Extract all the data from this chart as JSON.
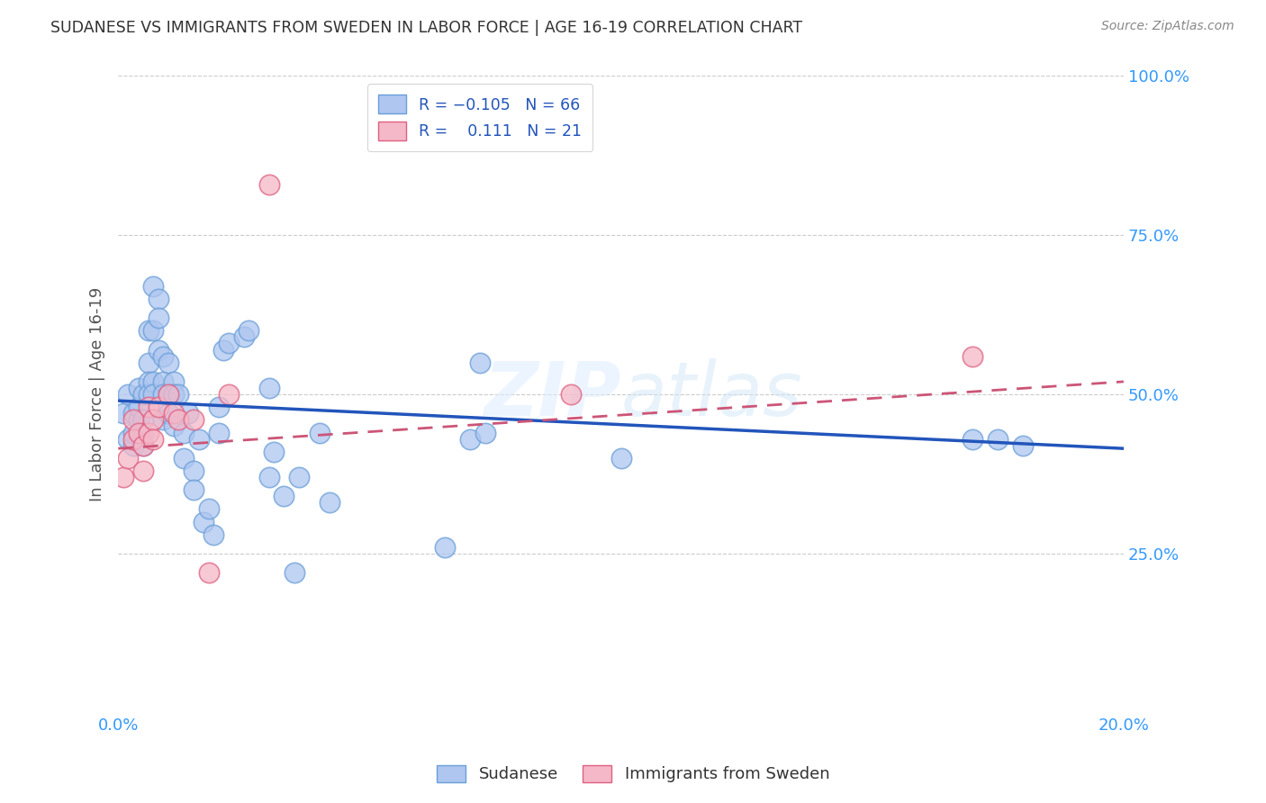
{
  "title": "SUDANESE VS IMMIGRANTS FROM SWEDEN IN LABOR FORCE | AGE 16-19 CORRELATION CHART",
  "source": "Source: ZipAtlas.com",
  "ylabel": "In Labor Force | Age 16-19",
  "xlim": [
    0.0,
    0.2
  ],
  "ylim": [
    0.0,
    1.0
  ],
  "xtick_positions": [
    0.0,
    0.04,
    0.08,
    0.12,
    0.16,
    0.2
  ],
  "xtick_labels": [
    "0.0%",
    "",
    "",
    "",
    "",
    "20.0%"
  ],
  "ytick_positions": [
    0.0,
    0.25,
    0.5,
    0.75,
    1.0
  ],
  "ytick_labels_right": [
    "",
    "25.0%",
    "50.0%",
    "75.0%",
    "100.0%"
  ],
  "watermark": "ZIPatlas",
  "sudanese_color_face": "#aec6f0",
  "sudanese_color_edge": "#6a9fd8",
  "sweden_color_face": "#f4b8c8",
  "sweden_color_edge": "#e06080",
  "trend_blue_color": "#2255bb",
  "trend_pink_color": "#cc5577",
  "sudanese_x": [
    0.001,
    0.002,
    0.002,
    0.003,
    0.003,
    0.003,
    0.004,
    0.004,
    0.004,
    0.005,
    0.005,
    0.005,
    0.005,
    0.006,
    0.006,
    0.006,
    0.006,
    0.007,
    0.007,
    0.007,
    0.007,
    0.008,
    0.008,
    0.008,
    0.009,
    0.009,
    0.009,
    0.009,
    0.01,
    0.01,
    0.01,
    0.011,
    0.011,
    0.011,
    0.012,
    0.013,
    0.013,
    0.014,
    0.015,
    0.015,
    0.016,
    0.017,
    0.018,
    0.019,
    0.02,
    0.02,
    0.021,
    0.022,
    0.025,
    0.026,
    0.03,
    0.03,
    0.031,
    0.033,
    0.035,
    0.036,
    0.04,
    0.042,
    0.065,
    0.07,
    0.072,
    0.073,
    0.1,
    0.17,
    0.175,
    0.18
  ],
  "sudanese_y": [
    0.47,
    0.43,
    0.5,
    0.42,
    0.47,
    0.44,
    0.46,
    0.48,
    0.51,
    0.5,
    0.46,
    0.44,
    0.42,
    0.6,
    0.55,
    0.52,
    0.5,
    0.67,
    0.6,
    0.52,
    0.5,
    0.65,
    0.62,
    0.57,
    0.56,
    0.52,
    0.5,
    0.46,
    0.55,
    0.5,
    0.47,
    0.52,
    0.5,
    0.45,
    0.5,
    0.44,
    0.4,
    0.47,
    0.38,
    0.35,
    0.43,
    0.3,
    0.32,
    0.28,
    0.48,
    0.44,
    0.57,
    0.58,
    0.59,
    0.6,
    0.51,
    0.37,
    0.41,
    0.34,
    0.22,
    0.37,
    0.44,
    0.33,
    0.26,
    0.43,
    0.55,
    0.44,
    0.4,
    0.43,
    0.43,
    0.42
  ],
  "sweden_x": [
    0.001,
    0.002,
    0.003,
    0.003,
    0.004,
    0.005,
    0.005,
    0.006,
    0.006,
    0.007,
    0.007,
    0.008,
    0.01,
    0.011,
    0.012,
    0.015,
    0.018,
    0.022,
    0.03,
    0.09,
    0.17
  ],
  "sweden_y": [
    0.37,
    0.4,
    0.43,
    0.46,
    0.44,
    0.42,
    0.38,
    0.48,
    0.44,
    0.46,
    0.43,
    0.48,
    0.5,
    0.47,
    0.46,
    0.46,
    0.22,
    0.5,
    0.83,
    0.5,
    0.56
  ],
  "blue_trend_x0": 0.0,
  "blue_trend_x1": 0.2,
  "blue_trend_y0": 0.49,
  "blue_trend_y1": 0.415,
  "pink_trend_x0": 0.0,
  "pink_trend_x1": 0.2,
  "pink_trend_y0": 0.415,
  "pink_trend_y1": 0.52,
  "background_color": "#ffffff",
  "grid_color": "#cccccc",
  "title_color": "#333333",
  "axis_label_color": "#555555",
  "right_axis_color": "#3399ff",
  "tick_color": "#3399ff"
}
